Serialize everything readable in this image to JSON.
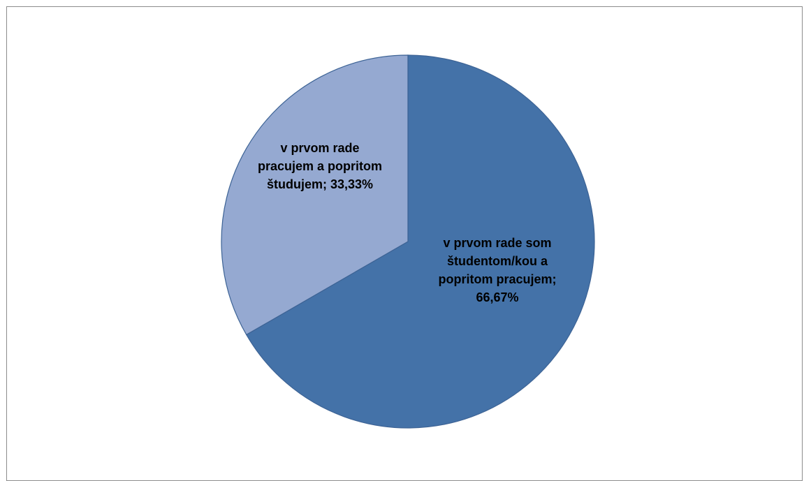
{
  "chart_data": {
    "type": "pie",
    "title": "",
    "categories": [
      "v prvom rade som študentom/kou a popritom pracujem",
      "v prvom rade pracujem a popritom študujem"
    ],
    "values": [
      66.67,
      33.33
    ],
    "value_labels": [
      "66,67%",
      "33,33%"
    ],
    "data_labels": [
      [
        "v prvom rade som",
        "študentom/kou a",
        "popritom pracujem;",
        "66,67%"
      ],
      [
        "v prvom rade",
        "pracujem a popritom",
        "študujem; 33,33%"
      ]
    ],
    "colors": [
      "#4472a8",
      "#95a9d1"
    ],
    "start_angle_deg": 0,
    "direction": "clockwise",
    "legend": "none"
  }
}
